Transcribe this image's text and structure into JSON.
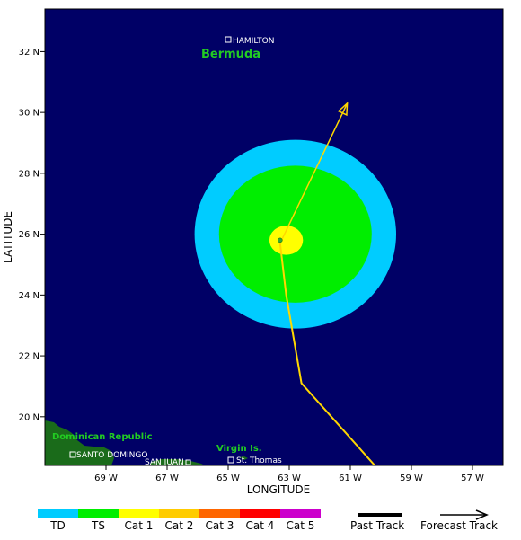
{
  "map": {
    "xlabel": "LONGITUDE",
    "ylabel": "LATITUDE",
    "lon_ticks": [
      {
        "value": -69,
        "label": "69 W"
      },
      {
        "value": -67,
        "label": "67 W"
      },
      {
        "value": -65,
        "label": "65 W"
      },
      {
        "value": -63,
        "label": "63 W"
      },
      {
        "value": -61,
        "label": "61 W"
      },
      {
        "value": -59,
        "label": "59 W"
      },
      {
        "value": -57,
        "label": "57 W"
      }
    ],
    "lat_ticks": [
      {
        "value": 20,
        "label": "20 N"
      },
      {
        "value": 22,
        "label": "22 N"
      },
      {
        "value": 24,
        "label": "24 N"
      },
      {
        "value": 26,
        "label": "26 N"
      },
      {
        "value": 28,
        "label": "28 N"
      },
      {
        "value": 30,
        "label": "30 N"
      },
      {
        "value": 32,
        "label": "32 N"
      }
    ],
    "lon_range": [
      -71,
      -56
    ],
    "lat_range": [
      18.4,
      33.4
    ],
    "colors": {
      "ocean": "#000066",
      "land": "#1a6b1a",
      "region_label": "#22cc22",
      "track": "#ffd700"
    }
  },
  "places": {
    "hamilton": "HAMILTON",
    "bermuda": "Bermuda",
    "dominican_republic": "Dominican Republic",
    "santo_domingo": "SANTO DOMINGO",
    "san_juan": "SAN JUAN",
    "virgin_islands": "Virgin Is.",
    "st_thomas": "St. Thomas"
  },
  "storm": {
    "center": {
      "lon": -63.3,
      "lat": 25.8
    },
    "wind_fields": [
      {
        "category": "TD",
        "center_lon": -62.8,
        "center_lat": 26.0,
        "radius_lon": 3.3,
        "radius_lat": 3.1,
        "color": "#00ccff"
      },
      {
        "category": "TS",
        "center_lon": -62.8,
        "center_lat": 26.0,
        "radius_lon": 2.5,
        "radius_lat": 2.25,
        "color": "#00ee00"
      },
      {
        "category": "Cat 1",
        "center_lon": -63.1,
        "center_lat": 25.8,
        "radius_lon": 0.55,
        "radius_lat": 0.48,
        "color": "#ffff00"
      }
    ],
    "past_track": [
      {
        "lon": -60.2,
        "lat": 18.4
      },
      {
        "lon": -62.6,
        "lat": 21.1
      },
      {
        "lon": -63.1,
        "lat": 24.0
      },
      {
        "lon": -63.3,
        "lat": 25.7
      }
    ],
    "forecast_track": [
      {
        "lon": -63.3,
        "lat": 25.7
      },
      {
        "lon": -61.1,
        "lat": 30.3
      }
    ]
  },
  "legend": {
    "categories": [
      {
        "label": "TD",
        "color": "#00ccff"
      },
      {
        "label": "TS",
        "color": "#00ee00"
      },
      {
        "label": "Cat 1",
        "color": "#ffff00"
      },
      {
        "label": "Cat 2",
        "color": "#ffcc00"
      },
      {
        "label": "Cat 3",
        "color": "#ff6600"
      },
      {
        "label": "Cat 4",
        "color": "#ff0000"
      },
      {
        "label": "Cat 5",
        "color": "#cc00cc"
      }
    ],
    "past_track_label": "Past Track",
    "forecast_track_label": "Forecast Track"
  }
}
